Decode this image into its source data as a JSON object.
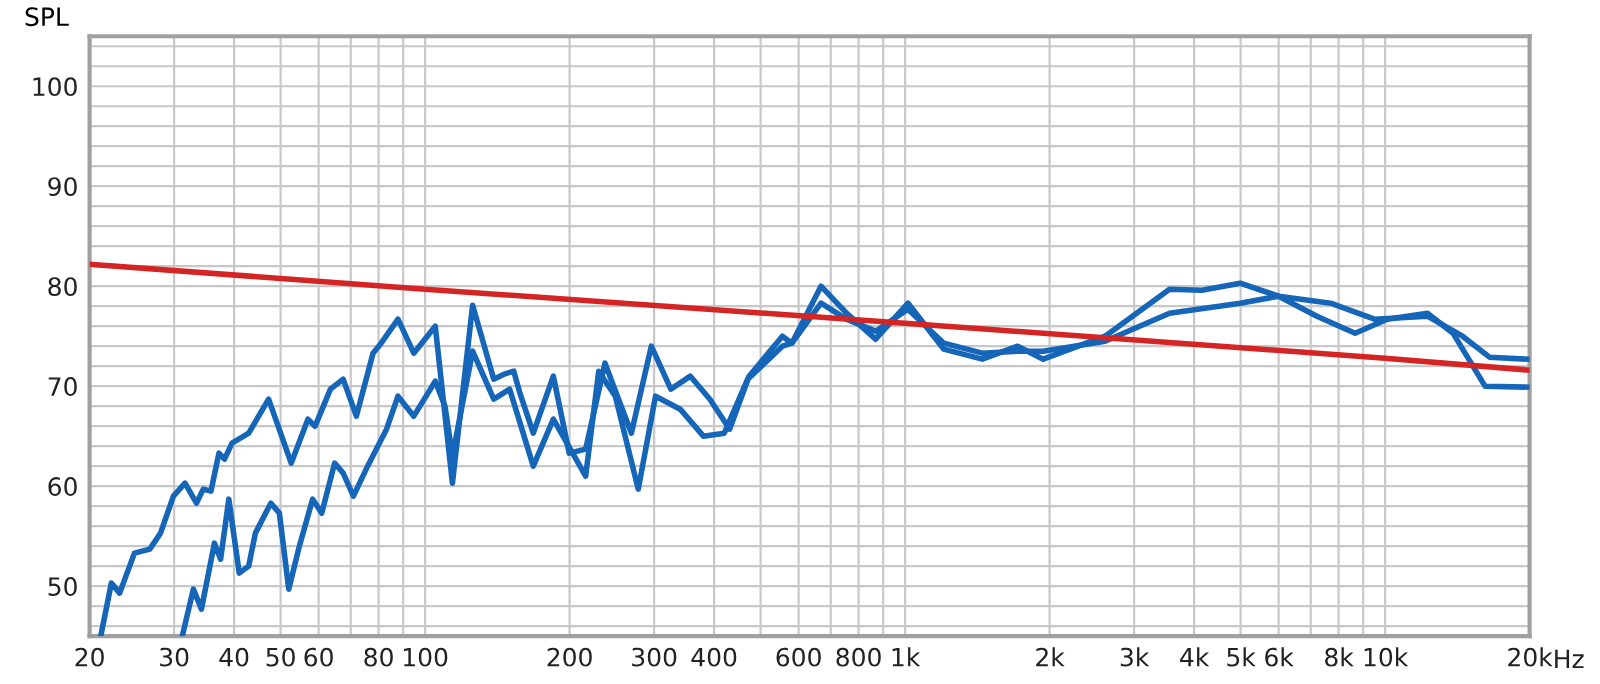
{
  "chart_data": {
    "type": "line",
    "ylabel": "SPL",
    "xlabel": "Hz",
    "log": "x",
    "grid": true,
    "marker": "none",
    "line_style": "solid",
    "xlim": [
      20,
      20000
    ],
    "ylim": [
      45,
      105
    ],
    "xticks": [
      20,
      30,
      40,
      50,
      60,
      {
        "value": 70,
        "label": null
      },
      80,
      {
        "value": 90,
        "label": null
      },
      100,
      200,
      300,
      400,
      {
        "value": 500,
        "label": null
      },
      600,
      {
        "value": 700,
        "label": null
      },
      800,
      {
        "value": 900,
        "label": null
      },
      {
        "value": 1000,
        "label": "1k"
      },
      {
        "value": 2000,
        "label": "2k"
      },
      {
        "value": 3000,
        "label": "3k"
      },
      {
        "value": 4000,
        "label": "4k"
      },
      {
        "value": 5000,
        "label": "5k"
      },
      {
        "value": 6000,
        "label": "6k"
      },
      {
        "value": 7000,
        "label": null
      },
      {
        "value": 8000,
        "label": "8k"
      },
      {
        "value": 9000,
        "label": null
      },
      {
        "value": 10000,
        "label": "10k"
      },
      {
        "value": 20000,
        "label": "20k"
      }
    ],
    "yticks": [
      {
        "value": 46,
        "label": null
      },
      {
        "value": 48,
        "label": null
      },
      50,
      {
        "value": 52,
        "label": null
      },
      {
        "value": 54,
        "label": null
      },
      {
        "value": 56,
        "label": null
      },
      {
        "value": 58,
        "label": null
      },
      60,
      {
        "value": 62,
        "label": null
      },
      {
        "value": 64,
        "label": null
      },
      {
        "value": 66,
        "label": null
      },
      {
        "value": 68,
        "label": null
      },
      70,
      {
        "value": 72,
        "label": null
      },
      {
        "value": 74,
        "label": null
      },
      {
        "value": 76,
        "label": null
      },
      {
        "value": 78,
        "label": null
      },
      80,
      {
        "value": 82,
        "label": null
      },
      {
        "value": 84,
        "label": null
      },
      {
        "value": 86,
        "label": null
      },
      {
        "value": 88,
        "label": null
      },
      90,
      {
        "value": 92,
        "label": null
      },
      {
        "value": 94,
        "label": null
      },
      {
        "value": 96,
        "label": null
      },
      {
        "value": 98,
        "label": null
      },
      100,
      {
        "value": 102,
        "label": null
      },
      {
        "value": 104,
        "label": null
      }
    ],
    "series": [
      {
        "color": "#1565b8",
        "x": [
          21.1,
          22.2,
          23.1,
          24.8,
          26.7,
          28.1,
          29.9,
          31.6,
          33.4,
          34.5,
          35.8,
          37.2,
          38.2,
          39.6,
          42.9,
          47.2,
          52.6,
          57.0,
          59.0,
          63.5,
          67.5,
          71.9,
          77.9,
          81.0,
          87.8,
          94.7,
          105,
          114,
          125.6,
          139,
          146,
          153,
          157.6,
          168,
          185,
          199.6,
          216,
          237,
          269,
          296,
          325,
          357,
          392,
          431,
          473,
          555,
          581,
          668,
          755,
          868,
          1014,
          1204,
          1448,
          1716,
          1940,
          2610,
          3555,
          4150,
          4990,
          6000,
          7210,
          8660,
          10100,
          12250,
          13850,
          16150,
          19800
        ],
        "values": [
          45,
          50.3,
          49.3,
          53.3,
          53.7,
          55.3,
          59.0,
          60.3,
          58.3,
          59.7,
          59.5,
          63.3,
          62.7,
          64.3,
          65.3,
          68.7,
          62.3,
          66.7,
          66.0,
          69.7,
          70.7,
          67.0,
          73.3,
          74.3,
          76.7,
          73.3,
          76,
          60.3,
          78.1,
          70.7,
          71.2,
          71.5,
          69.3,
          65.3,
          71.0,
          63.3,
          63.7,
          72.3,
          65.3,
          74.0,
          69.7,
          71.0,
          68.7,
          65.7,
          71,
          75.0,
          74.3,
          80.0,
          77.3,
          74.7,
          78.3,
          73.7,
          72.7,
          74,
          72.7,
          75,
          79.7,
          79.6,
          80.3,
          79,
          77,
          75.3,
          76.7,
          77.3,
          75.3,
          70,
          69.9
        ]
      },
      {
        "color": "#1565b8",
        "x": [
          31.2,
          32.9,
          34.2,
          36.4,
          37.5,
          39.0,
          41.0,
          42.9,
          44.3,
          47.7,
          49.7,
          52.0,
          54.7,
          58.3,
          60.9,
          64.8,
          67.5,
          70.9,
          75.9,
          83.1,
          87.8,
          94.7,
          105,
          110,
          114,
          125.6,
          139,
          150,
          168,
          185,
          216,
          230,
          249,
          278,
          302,
          340,
          380,
          420,
          470,
          555,
          581,
          668,
          755,
          868,
          1014,
          1204,
          1448,
          1716,
          1940,
          2610,
          3555,
          4990,
          6000,
          7700,
          9500,
          12250,
          14500,
          16500,
          19800
        ],
        "values": [
          45,
          49.7,
          47.7,
          54.3,
          52.7,
          58.7,
          51.3,
          52.0,
          55.3,
          58.3,
          57.3,
          49.7,
          54.0,
          58.7,
          57.3,
          62.3,
          61.3,
          59.0,
          62.0,
          65.7,
          69.0,
          67,
          70.5,
          68,
          63,
          73.5,
          68.7,
          69.7,
          62,
          66.7,
          61,
          71.5,
          69,
          59.7,
          69,
          67.7,
          65,
          65.3,
          70.7,
          74,
          74.3,
          78.3,
          76.7,
          75.5,
          77.7,
          74.3,
          73.3,
          73.5,
          73.5,
          74.5,
          77.3,
          78.3,
          79,
          78.3,
          76.7,
          77.0,
          75,
          72.9,
          72.7
        ]
      },
      {
        "color": "#d42424",
        "x": [
          20,
          100,
          1000,
          10000,
          20000
        ],
        "values": [
          82.2,
          79.7,
          76.3,
          72.8,
          71.6
        ]
      }
    ]
  }
}
